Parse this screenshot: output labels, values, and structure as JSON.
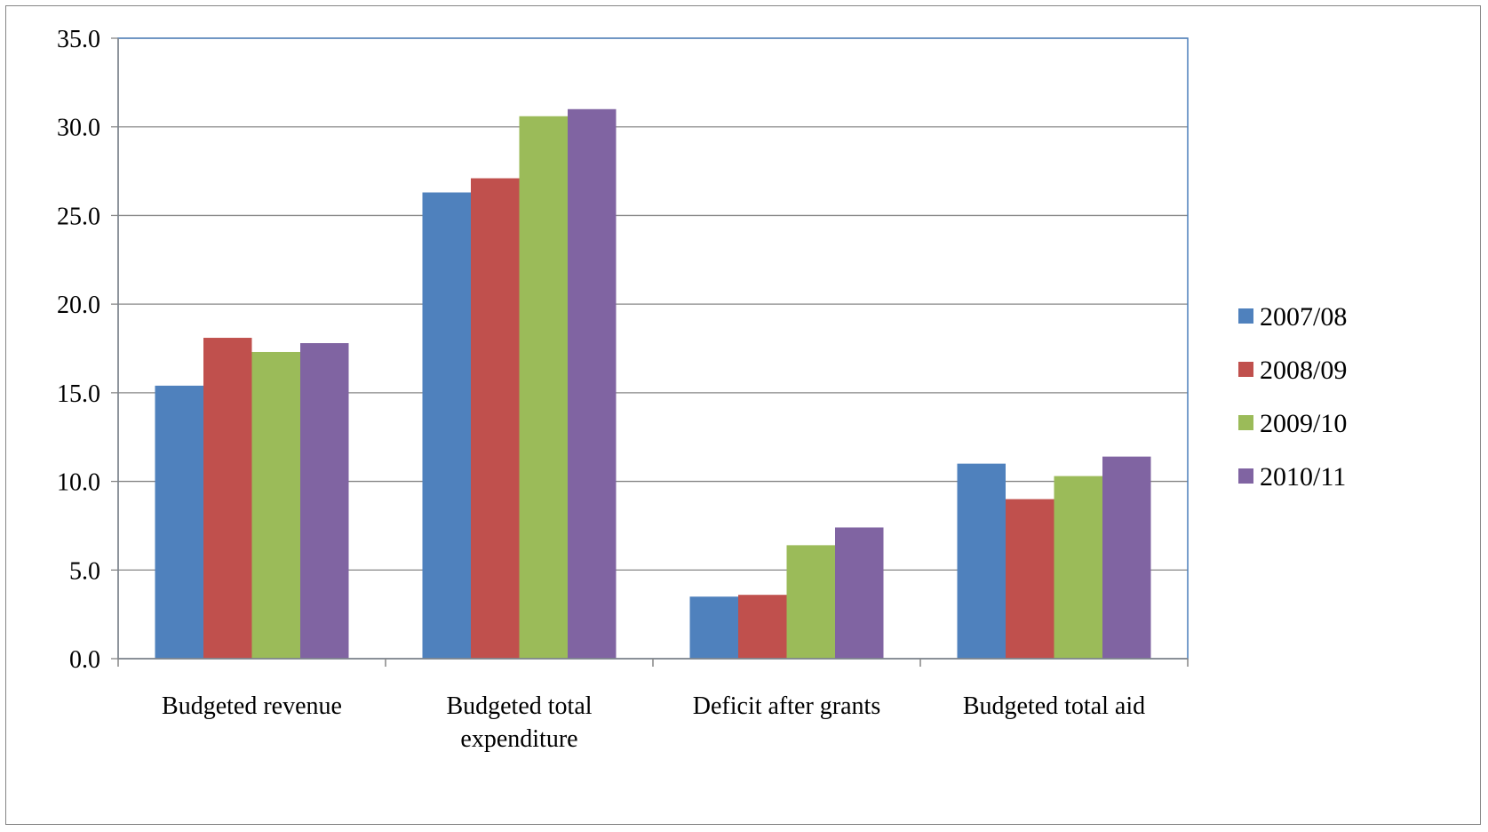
{
  "chart_data": {
    "type": "bar",
    "title": "",
    "xlabel": "",
    "ylabel": "",
    "ylim": [
      0,
      35
    ],
    "ytick_step": 5,
    "ytick_labels": [
      "0.0",
      "5.0",
      "10.0",
      "15.0",
      "20.0",
      "25.0",
      "30.0",
      "35.0"
    ],
    "grid": true,
    "legend_position": "right",
    "categories": [
      [
        "Budgeted revenue"
      ],
      [
        "Budgeted total",
        "expenditure"
      ],
      [
        "Deficit after grants"
      ],
      [
        "Budgeted total aid"
      ]
    ],
    "series": [
      {
        "name": "2007/08",
        "color": "#4F81BD",
        "values": [
          15.4,
          26.3,
          3.5,
          11.0
        ]
      },
      {
        "name": "2008/09",
        "color": "#C0504D",
        "values": [
          18.1,
          27.1,
          3.6,
          9.0
        ]
      },
      {
        "name": "2009/10",
        "color": "#9BBB59",
        "values": [
          17.3,
          30.6,
          6.4,
          10.3
        ]
      },
      {
        "name": "2010/11",
        "color": "#8064A2",
        "values": [
          17.8,
          31.0,
          7.4,
          11.4
        ]
      }
    ]
  }
}
